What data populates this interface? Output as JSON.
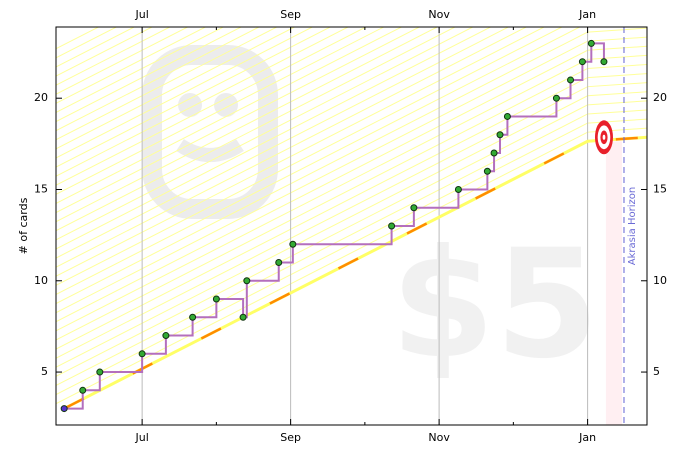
{
  "chart_data": {
    "type": "step",
    "ylabel": "# of cards",
    "xlim": [
      5.84,
      13.8
    ],
    "ylim": [
      2.1,
      23.9
    ],
    "xticks": [
      {
        "value": 7,
        "label": "Jul"
      },
      {
        "value": 9,
        "label": "Sep"
      },
      {
        "value": 11,
        "label": "Nov"
      },
      {
        "value": 13,
        "label": "Jan"
      }
    ],
    "xminorticks": [
      8,
      10,
      12
    ],
    "yticks": [
      5,
      10,
      15,
      20
    ],
    "grid": true,
    "x": [
      5.95,
      6.2,
      6.43,
      7.0,
      7.32,
      7.68,
      8.0,
      8.36,
      8.41,
      8.84,
      9.03,
      10.36,
      10.66,
      11.26,
      11.65,
      11.74,
      11.82,
      11.92,
      12.58,
      12.77,
      12.93,
      13.05,
      13.22
    ],
    "series": [
      {
        "color": "#b46fbd",
        "values": [
          3,
          4,
          5,
          6,
          7,
          8,
          9,
          8,
          10,
          11,
          12,
          13,
          14,
          15,
          16,
          17,
          18,
          19,
          20,
          21,
          22,
          23,
          22
        ]
      }
    ],
    "road": {
      "color": "#ffff66",
      "dash_color": "#ff8c00",
      "x": [
        5.95,
        13.0,
        13.8
      ],
      "values": [
        3,
        17.64,
        17.86
      ]
    },
    "horizon": {
      "x": 13.49,
      "label": "Akrasia Horizon",
      "color": "#6b6bd6"
    },
    "watermark": "$5"
  }
}
